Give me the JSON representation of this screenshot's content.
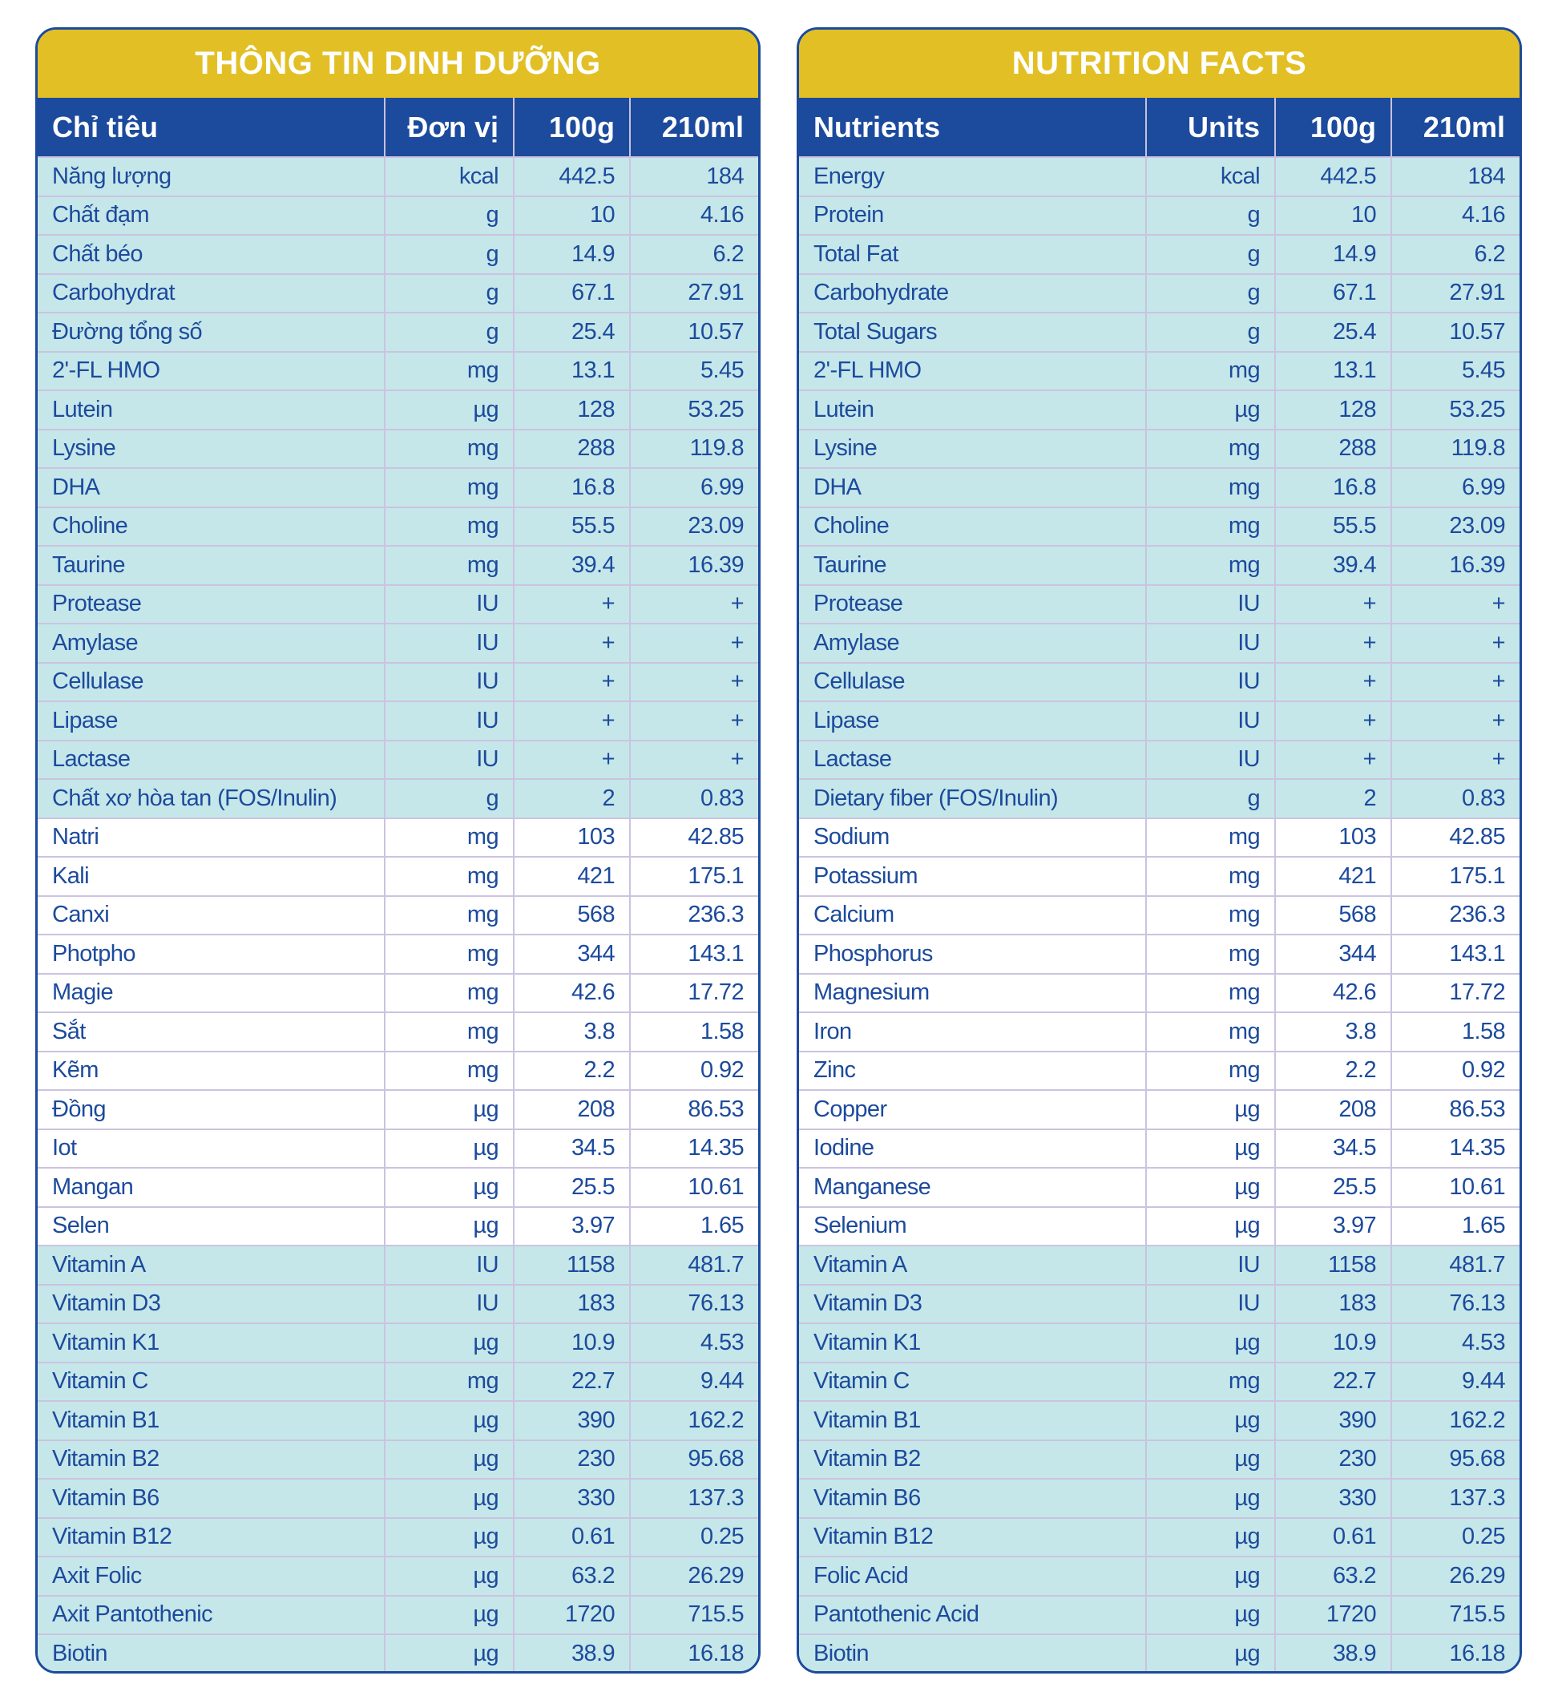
{
  "colors": {
    "title_bg": "#e2c025",
    "header_bg": "#1c4a9c",
    "row_cyan": "#c5e7ea",
    "row_white": "#ffffff",
    "text": "#1c4a9c"
  },
  "vietnamese": {
    "title": "THÔNG TIN DINH DƯỠNG",
    "headers": [
      "Chỉ tiêu",
      "Đơn vị",
      "100g",
      "210ml"
    ],
    "rows": [
      [
        "Năng lượng",
        "kcal",
        "442.5",
        "184"
      ],
      [
        "Chất đạm",
        "g",
        "10",
        "4.16"
      ],
      [
        "Chất béo",
        "g",
        "14.9",
        "6.2"
      ],
      [
        "Carbohydrat",
        "g",
        "67.1",
        "27.91"
      ],
      [
        "Đường tổng số",
        "g",
        "25.4",
        "10.57"
      ],
      [
        "2'-FL HMO",
        "mg",
        "13.1",
        "5.45"
      ],
      [
        "Lutein",
        "µg",
        "128",
        "53.25"
      ],
      [
        "Lysine",
        "mg",
        "288",
        "119.8"
      ],
      [
        "DHA",
        "mg",
        "16.8",
        "6.99"
      ],
      [
        "Choline",
        "mg",
        "55.5",
        "23.09"
      ],
      [
        "Taurine",
        "mg",
        "39.4",
        "16.39"
      ],
      [
        "Protease",
        "IU",
        "+",
        "+"
      ],
      [
        "Amylase",
        "IU",
        "+",
        "+"
      ],
      [
        "Cellulase",
        "IU",
        "+",
        "+"
      ],
      [
        "Lipase",
        "IU",
        "+",
        "+"
      ],
      [
        "Lactase",
        "IU",
        "+",
        "+"
      ],
      [
        "Chất xơ hòa tan (FOS/Inulin)",
        "g",
        "2",
        "0.83"
      ],
      [
        "Natri",
        "mg",
        "103",
        "42.85"
      ],
      [
        "Kali",
        "mg",
        "421",
        "175.1"
      ],
      [
        "Canxi",
        "mg",
        "568",
        "236.3"
      ],
      [
        "Photpho",
        "mg",
        "344",
        "143.1"
      ],
      [
        "Magie",
        "mg",
        "42.6",
        "17.72"
      ],
      [
        "Sắt",
        "mg",
        "3.8",
        "1.58"
      ],
      [
        "Kẽm",
        "mg",
        "2.2",
        "0.92"
      ],
      [
        "Đồng",
        "µg",
        "208",
        "86.53"
      ],
      [
        "Iot",
        "µg",
        "34.5",
        "14.35"
      ],
      [
        "Mangan",
        "µg",
        "25.5",
        "10.61"
      ],
      [
        "Selen",
        "µg",
        "3.97",
        "1.65"
      ],
      [
        "Vitamin A",
        "IU",
        "1158",
        "481.7"
      ],
      [
        "Vitamin D3",
        "IU",
        "183",
        "76.13"
      ],
      [
        "Vitamin K1",
        "µg",
        "10.9",
        "4.53"
      ],
      [
        "Vitamin C",
        "mg",
        "22.7",
        "9.44"
      ],
      [
        "Vitamin B1",
        "µg",
        "390",
        "162.2"
      ],
      [
        "Vitamin B2",
        "µg",
        "230",
        "95.68"
      ],
      [
        "Vitamin B6",
        "µg",
        "330",
        "137.3"
      ],
      [
        "Vitamin B12",
        "µg",
        "0.61",
        "0.25"
      ],
      [
        "Axit Folic",
        "µg",
        "63.2",
        "26.29"
      ],
      [
        "Axit Pantothenic",
        "µg",
        "1720",
        "715.5"
      ],
      [
        "Biotin",
        "µg",
        "38.9",
        "16.18"
      ]
    ]
  },
  "english": {
    "title": "NUTRITION FACTS",
    "headers": [
      "Nutrients",
      "Units",
      "100g",
      "210ml"
    ],
    "rows": [
      [
        "Energy",
        "kcal",
        "442.5",
        "184"
      ],
      [
        "Protein",
        "g",
        "10",
        "4.16"
      ],
      [
        "Total Fat",
        "g",
        "14.9",
        "6.2"
      ],
      [
        "Carbohydrate",
        "g",
        "67.1",
        "27.91"
      ],
      [
        "Total Sugars",
        "g",
        "25.4",
        "10.57"
      ],
      [
        "2'-FL HMO",
        "mg",
        "13.1",
        "5.45"
      ],
      [
        "Lutein",
        "µg",
        "128",
        "53.25"
      ],
      [
        "Lysine",
        "mg",
        "288",
        "119.8"
      ],
      [
        "DHA",
        "mg",
        "16.8",
        "6.99"
      ],
      [
        "Choline",
        "mg",
        "55.5",
        "23.09"
      ],
      [
        "Taurine",
        "mg",
        "39.4",
        "16.39"
      ],
      [
        "Protease",
        "IU",
        "+",
        "+"
      ],
      [
        "Amylase",
        "IU",
        "+",
        "+"
      ],
      [
        "Cellulase",
        "IU",
        "+",
        "+"
      ],
      [
        "Lipase",
        "IU",
        "+",
        "+"
      ],
      [
        "Lactase",
        "IU",
        "+",
        "+"
      ],
      [
        "Dietary fiber (FOS/Inulin)",
        "g",
        "2",
        "0.83"
      ],
      [
        "Sodium",
        "mg",
        "103",
        "42.85"
      ],
      [
        "Potassium",
        "mg",
        "421",
        "175.1"
      ],
      [
        "Calcium",
        "mg",
        "568",
        "236.3"
      ],
      [
        "Phosphorus",
        "mg",
        "344",
        "143.1"
      ],
      [
        "Magnesium",
        "mg",
        "42.6",
        "17.72"
      ],
      [
        "Iron",
        "mg",
        "3.8",
        "1.58"
      ],
      [
        "Zinc",
        "mg",
        "2.2",
        "0.92"
      ],
      [
        "Copper",
        "µg",
        "208",
        "86.53"
      ],
      [
        "Iodine",
        "µg",
        "34.5",
        "14.35"
      ],
      [
        "Manganese",
        "µg",
        "25.5",
        "10.61"
      ],
      [
        "Selenium",
        "µg",
        "3.97",
        "1.65"
      ],
      [
        "Vitamin A",
        "IU",
        "1158",
        "481.7"
      ],
      [
        "Vitamin D3",
        "IU",
        "183",
        "76.13"
      ],
      [
        "Vitamin K1",
        "µg",
        "10.9",
        "4.53"
      ],
      [
        "Vitamin C",
        "mg",
        "22.7",
        "9.44"
      ],
      [
        "Vitamin B1",
        "µg",
        "390",
        "162.2"
      ],
      [
        "Vitamin B2",
        "µg",
        "230",
        "95.68"
      ],
      [
        "Vitamin B6",
        "µg",
        "330",
        "137.3"
      ],
      [
        "Vitamin B12",
        "µg",
        "0.61",
        "0.25"
      ],
      [
        "Folic Acid",
        "µg",
        "63.2",
        "26.29"
      ],
      [
        "Pantothenic Acid",
        "µg",
        "1720",
        "715.5"
      ],
      [
        "Biotin",
        "µg",
        "38.9",
        "16.18"
      ]
    ]
  }
}
